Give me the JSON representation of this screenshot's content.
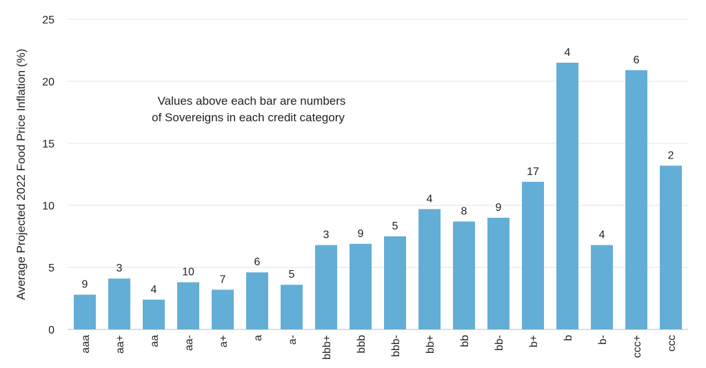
{
  "chart_data": {
    "type": "bar",
    "title": "",
    "xlabel": "",
    "ylabel": "Average Projected 2022 Food Price Inflation (%)",
    "ylim": [
      0,
      25
    ],
    "yticks": [
      0,
      5,
      10,
      15,
      20,
      25
    ],
    "grid": true,
    "bar_color": "#63aed6",
    "annotation": {
      "line1": "Values above each bar are numbers",
      "line2": "of Sovereigns in each credit category"
    },
    "categories": [
      "aaa",
      "aa+",
      "aa",
      "aa-",
      "a+",
      "a",
      "a-",
      "bbb+",
      "bbb",
      "bbb-",
      "bb+",
      "bb",
      "bb-",
      "b+",
      "b",
      "b-",
      "ccc+",
      "ccc"
    ],
    "values": [
      2.8,
      4.1,
      2.4,
      3.8,
      3.2,
      4.6,
      3.6,
      6.8,
      6.9,
      7.5,
      9.7,
      8.7,
      9.0,
      11.9,
      21.5,
      6.8,
      20.9,
      13.2
    ],
    "data_labels": [
      "9",
      "3",
      "4",
      "10",
      "7",
      "6",
      "5",
      "3",
      "9",
      "5",
      "4",
      "8",
      "9",
      "17",
      "4",
      "4",
      "6",
      "2"
    ]
  }
}
